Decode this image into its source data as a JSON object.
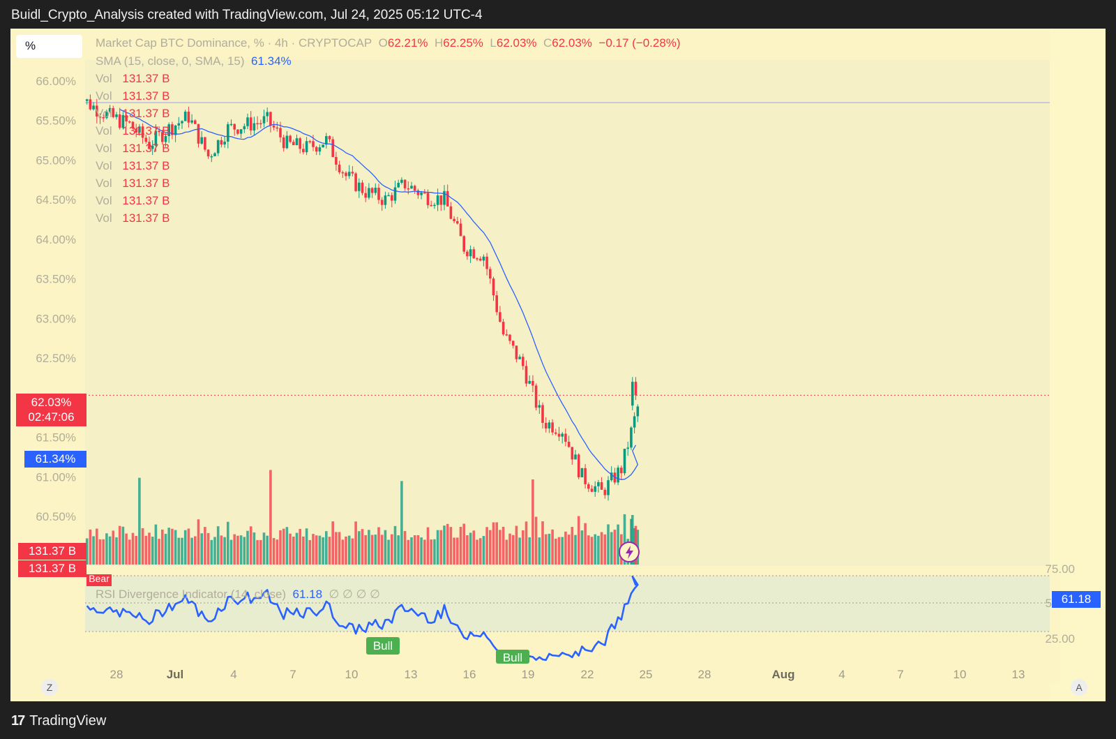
{
  "header": {
    "title": "Buidl_Crypto_Analysis created with TradingView.com, Jul 24, 2025 05:12 UTC-4"
  },
  "footer": {
    "brand": "TradingView",
    "logo_mark": "17"
  },
  "toolbar": {
    "percent_label": "%",
    "z_button": "Z",
    "a_button": "A"
  },
  "legend": {
    "symbol": "Market Cap BTC Dominance, % · 4h · CRYPTOCAP",
    "o_label": "O",
    "open": "62.21%",
    "h_label": "H",
    "high": "62.25%",
    "l_label": "L",
    "low": "62.03%",
    "c_label": "C",
    "close": "62.03%",
    "change": "−0.17 (−0.28%)",
    "sma_label": "SMA (15, close, 0, SMA, 15)",
    "sma_value": "61.34%",
    "vol_label": "Vol",
    "vol_value": "131.37 B",
    "vol_rows": 9
  },
  "price_tags": {
    "last_price": "62.03%",
    "countdown": "02:47:06",
    "sma": "61.34%",
    "vol_1": "131.37 B",
    "vol_2": "131.37 B"
  },
  "rsi": {
    "label": "RSI Divergence Indicator (14, close)",
    "value": "61.18",
    "placeholders": "∅ ∅ ∅ ∅",
    "tag": "61.18",
    "bear_label": "Bear",
    "bull_labels": [
      "Bull",
      "Bull"
    ]
  },
  "colors": {
    "background": "#fcf4c4",
    "up": "#089981",
    "down": "#f23645",
    "sma": "#2962ff",
    "rsi": "#2962ff",
    "bull": "#4caf50"
  },
  "chart_data": {
    "type": "candlestick",
    "title": "Market Cap BTC Dominance, % · 4h · CRYPTOCAP",
    "y_axis": {
      "ticks": [
        "66.00%",
        "65.50%",
        "65.00%",
        "64.50%",
        "64.00%",
        "63.50%",
        "63.00%",
        "62.50%",
        "61.50%",
        "61.00%",
        "60.50%"
      ],
      "tick_values": [
        66.0,
        65.5,
        65.0,
        64.5,
        64.0,
        63.5,
        63.0,
        62.5,
        61.5,
        61.0,
        60.5
      ],
      "range": [
        60.2,
        66.3
      ]
    },
    "x_axis": {
      "ticks": [
        "28",
        "Jul",
        "4",
        "7",
        "10",
        "13",
        "16",
        "19",
        "22",
        "25",
        "28",
        "Aug",
        "4",
        "7",
        "10",
        "13"
      ],
      "bold_ticks": [
        "Jul",
        "Aug"
      ],
      "range_days": [
        "2025-06-26",
        "2025-08-13"
      ]
    },
    "last_close": 62.03,
    "sma_last": 61.34,
    "series_path_daily": [
      {
        "day": "2025-06-26",
        "close": 65.9
      },
      {
        "day": "2025-06-27",
        "close": 65.7
      },
      {
        "day": "2025-06-28",
        "close": 65.55
      },
      {
        "day": "2025-06-29",
        "close": 65.45
      },
      {
        "day": "2025-06-30",
        "close": 65.2
      },
      {
        "day": "2025-07-01",
        "close": 65.4
      },
      {
        "day": "2025-07-02",
        "close": 65.55
      },
      {
        "day": "2025-07-03",
        "close": 65.05
      },
      {
        "day": "2025-07-04",
        "close": 65.4
      },
      {
        "day": "2025-07-05",
        "close": 65.45
      },
      {
        "day": "2025-07-06",
        "close": 65.5
      },
      {
        "day": "2025-07-07",
        "close": 65.2
      },
      {
        "day": "2025-07-08",
        "close": 65.15
      },
      {
        "day": "2025-07-09",
        "close": 65.25
      },
      {
        "day": "2025-07-10",
        "close": 64.8
      },
      {
        "day": "2025-07-11",
        "close": 64.6
      },
      {
        "day": "2025-07-12",
        "close": 64.5
      },
      {
        "day": "2025-07-13",
        "close": 64.7
      },
      {
        "day": "2025-07-14",
        "close": 64.55
      },
      {
        "day": "2025-07-15",
        "close": 64.5
      },
      {
        "day": "2025-07-16",
        "close": 63.9
      },
      {
        "day": "2025-07-17",
        "close": 63.8
      },
      {
        "day": "2025-07-18",
        "close": 62.8
      },
      {
        "day": "2025-07-19",
        "close": 62.4
      },
      {
        "day": "2025-07-20",
        "close": 61.7
      },
      {
        "day": "2025-07-21",
        "close": 61.6
      },
      {
        "day": "2025-07-22",
        "close": 61.0
      },
      {
        "day": "2025-07-23",
        "close": 60.8
      },
      {
        "day": "2025-07-24",
        "close": 61.1
      },
      {
        "day": "2025-07-25",
        "close": 62.03
      }
    ],
    "rsi_axis": {
      "ticks": [
        "75.00",
        "50.00",
        "25.00"
      ],
      "tick_values": [
        75,
        50,
        25
      ],
      "band": [
        30,
        70
      ]
    },
    "rsi_last": 61.18
  }
}
